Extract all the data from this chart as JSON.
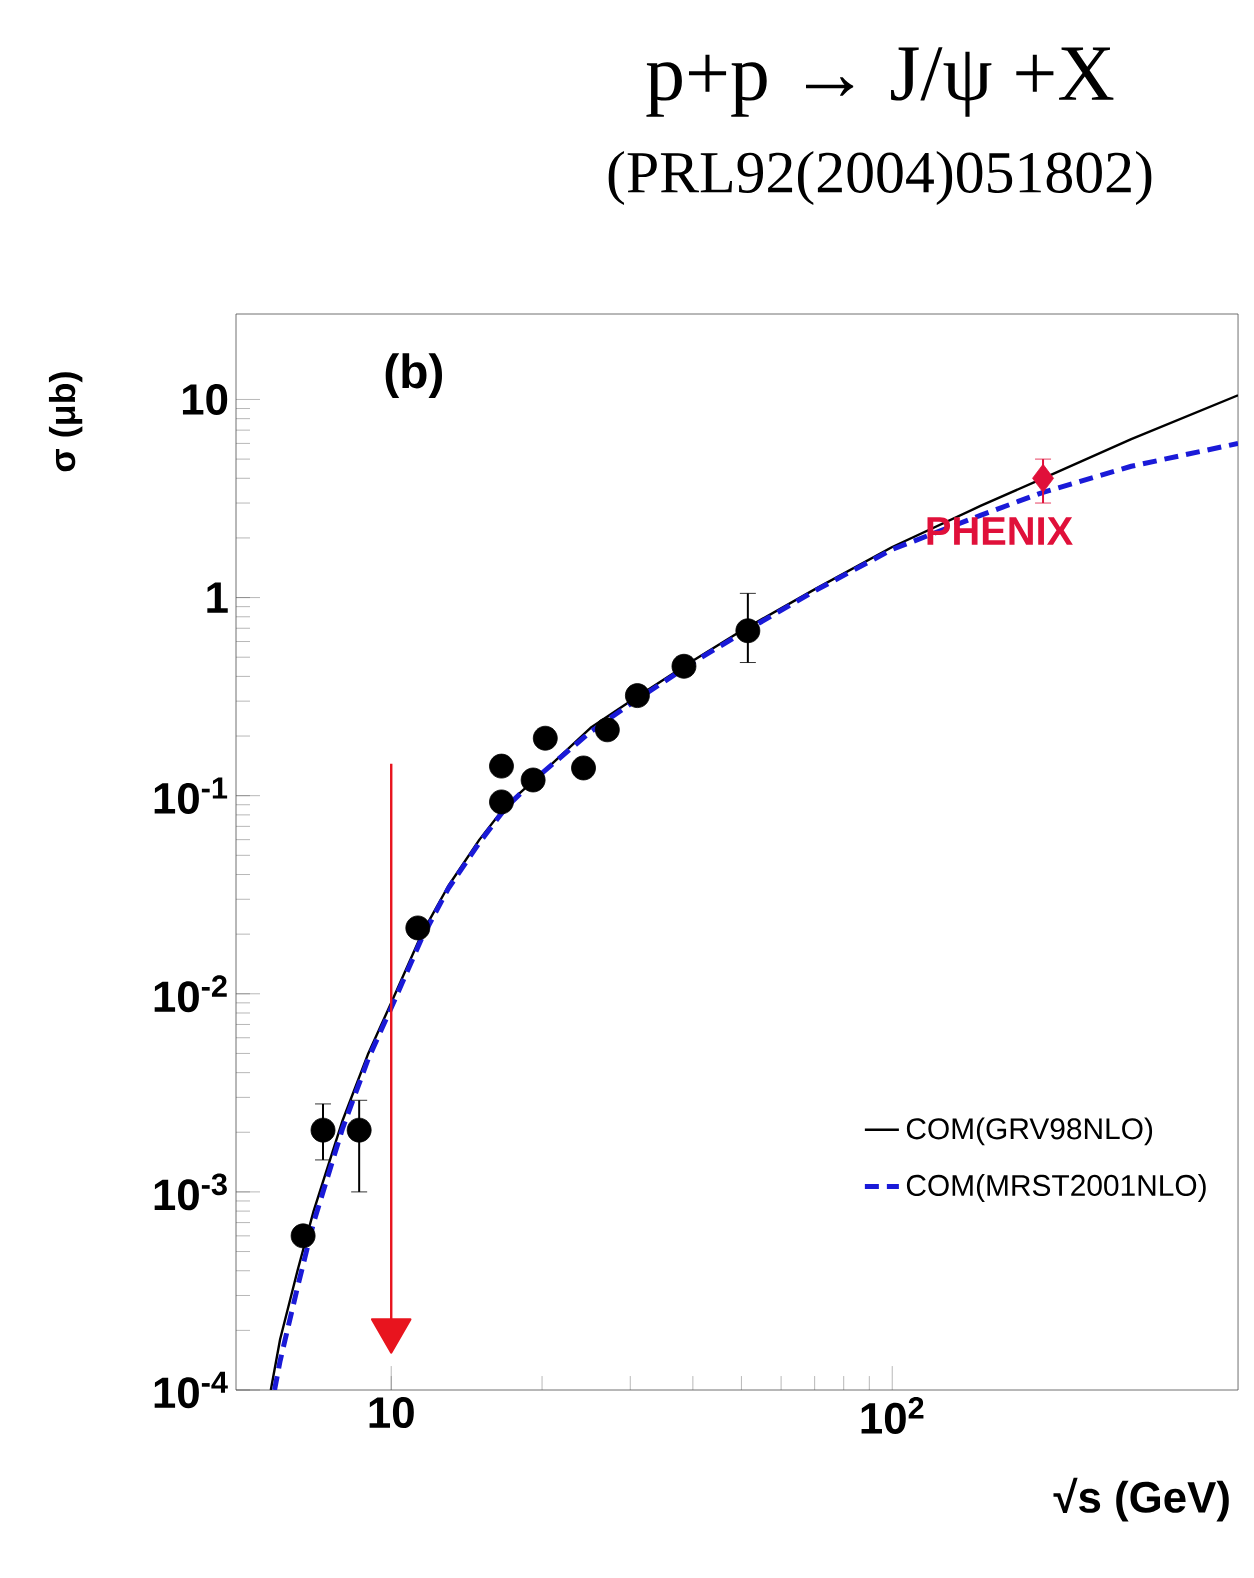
{
  "chart_data": {
    "type": "line",
    "title": "p+p → J/ψ +X",
    "subtitle": "(PRL92(2004)051802)",
    "xlabel": "√s (GeV)",
    "ylabel": "σ (μb)",
    "annotations": [
      "(b)"
    ],
    "log": "xy",
    "xlim": [
      4.9,
      490
    ],
    "ylim": [
      0.0001,
      27
    ],
    "xticks": [
      10,
      {
        "value": 100,
        "label": "10$^{2}$"
      }
    ],
    "yticks": [
      {
        "value": 0.0001,
        "label": "10$^{-4}$"
      },
      {
        "value": 0.001,
        "label": "10$^{-3}$"
      },
      {
        "value": 0.01,
        "label": "10$^{-2}$"
      },
      {
        "value": 0.1,
        "label": "10$^{-1}$"
      },
      1,
      10
    ],
    "legend": "bottom right",
    "series": [
      {
        "name": "COM(GRV98NLO)",
        "color": "#000000",
        "line_style": "solid",
        "x": [
          5.75,
          6,
          6.5,
          7,
          8,
          9,
          10,
          11.5,
          13,
          15,
          17,
          20,
          25,
          30,
          40,
          50,
          70,
          100,
          150,
          200,
          300,
          490
        ],
        "values": [
          0.0001,
          0.00018,
          0.0004,
          0.0008,
          0.0023,
          0.005,
          0.009,
          0.02,
          0.035,
          0.06,
          0.09,
          0.13,
          0.22,
          0.3,
          0.48,
          0.68,
          1.1,
          1.8,
          2.9,
          4.0,
          6.3,
          10.5
        ]
      },
      {
        "name": "COM(MRST2001NLO)",
        "color": "#1a1ad8",
        "line_style": "dashed",
        "x": [
          5.85,
          6,
          6.5,
          7,
          8,
          9,
          10,
          11.5,
          13,
          15,
          17,
          20,
          25,
          30,
          40,
          50,
          70,
          100,
          150,
          200,
          300,
          490
        ],
        "values": [
          0.0001,
          0.00014,
          0.00033,
          0.0007,
          0.0021,
          0.0047,
          0.0085,
          0.019,
          0.034,
          0.058,
          0.088,
          0.13,
          0.21,
          0.29,
          0.47,
          0.66,
          1.08,
          1.75,
          2.6,
          3.4,
          4.6,
          6.0
        ]
      },
      {
        "type": "scatter",
        "color": "#000000",
        "marker": "circle",
        "x": [
          6.67,
          7.31,
          8.63,
          11.3,
          16.6,
          16.6,
          19.2,
          20.3,
          24.2,
          27,
          31,
          38.4,
          51.5
        ],
        "values": [
          0.0006,
          0.00205,
          0.00205,
          0.0215,
          0.141,
          0.093,
          0.12,
          0.195,
          0.138,
          0.215,
          0.32,
          0.45,
          0.68
        ],
        "errors": [
          null,
          [
            0.00145,
            0.00278
          ],
          [
            0.001,
            0.0029
          ],
          null,
          null,
          null,
          null,
          null,
          null,
          null,
          null,
          null,
          [
            0.47,
            1.05
          ]
        ]
      },
      {
        "name": "PHENIX",
        "type": "scatter",
        "color": "#e0103a",
        "marker": "diamond",
        "x": [
          200
        ],
        "values": [
          4.0
        ],
        "errors": [
          [
            3.0,
            5.0
          ]
        ]
      },
      {
        "color": "#e8141e",
        "line_style": "solid",
        "marker": "triangle",
        "x": [
          10,
          10
        ],
        "values": [
          0.145,
          0.0002
        ]
      }
    ]
  }
}
